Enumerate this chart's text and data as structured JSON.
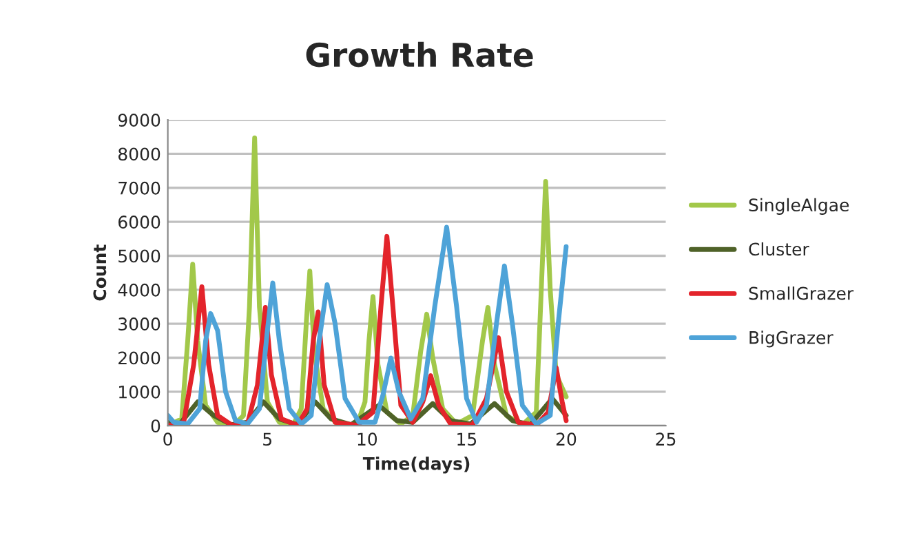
{
  "chart_data": {
    "type": "line",
    "title": "Growth Rate",
    "xlabel": "Time(days)",
    "ylabel": "Count",
    "xlim": [
      0,
      25
    ],
    "xticks": [
      0,
      5,
      10,
      15,
      20,
      25
    ],
    "ylim": [
      0,
      9000
    ],
    "yticks": [
      0,
      1000,
      2000,
      3000,
      4000,
      5000,
      6000,
      7000,
      8000,
      9000
    ],
    "grid": "y",
    "legend": "right",
    "marker": "none",
    "line_style": "solid",
    "series": [
      {
        "name": "SingleAlgae",
        "color": "#a2c84a",
        "x": [
          0,
          0.7,
          1.0,
          1.25,
          1.5,
          1.9,
          2.5,
          3.3,
          3.8,
          4.1,
          4.36,
          4.6,
          5.0,
          5.6,
          6.3,
          6.7,
          6.95,
          7.13,
          7.35,
          7.8,
          8.5,
          9.5,
          9.9,
          10.1,
          10.3,
          10.55,
          11.0,
          11.7,
          12.3,
          12.7,
          13.0,
          13.3,
          13.8,
          14.5,
          15.3,
          15.8,
          16.07,
          16.4,
          17.0,
          17.8,
          18.5,
          18.75,
          18.97,
          19.2,
          19.5,
          20.0
        ],
        "values": [
          0,
          200,
          2500,
          4750,
          2500,
          600,
          100,
          20,
          300,
          3500,
          8470,
          3500,
          700,
          100,
          30,
          500,
          3000,
          4550,
          2200,
          500,
          50,
          20,
          700,
          2500,
          3800,
          1800,
          400,
          50,
          300,
          2200,
          3280,
          2000,
          500,
          50,
          300,
          2500,
          3480,
          1800,
          300,
          30,
          400,
          4000,
          7190,
          4000,
          1500,
          850
        ]
      },
      {
        "name": "Cluster",
        "color": "#4f6228",
        "x": [
          0,
          0.6,
          1.5,
          2.3,
          3.2,
          4.0,
          4.8,
          5.6,
          6.5,
          7.4,
          8.2,
          9.2,
          10.6,
          11.5,
          12.3,
          13.3,
          14.2,
          15.2,
          16.4,
          17.3,
          18.2,
          19.3,
          20.0
        ],
        "values": [
          100,
          50,
          700,
          300,
          30,
          100,
          700,
          200,
          30,
          700,
          200,
          30,
          600,
          150,
          100,
          650,
          150,
          50,
          650,
          150,
          30,
          800,
          300
        ]
      },
      {
        "name": "SmallGrazer",
        "color": "#e3242b",
        "x": [
          0,
          0.8,
          1.3,
          1.71,
          2.05,
          2.5,
          3.2,
          4.0,
          4.5,
          4.9,
          5.2,
          5.7,
          6.5,
          7.0,
          7.3,
          7.55,
          7.85,
          8.4,
          9.5,
          10.3,
          10.7,
          11.0,
          11.3,
          11.7,
          12.3,
          12.8,
          13.2,
          13.6,
          14.2,
          15.3,
          16.0,
          16.6,
          17.0,
          17.6,
          18.5,
          19.1,
          19.5,
          19.8,
          20.0
        ],
        "values": [
          0,
          100,
          1800,
          4090,
          1800,
          300,
          20,
          50,
          1200,
          3480,
          1500,
          200,
          10,
          500,
          2500,
          3350,
          1200,
          100,
          10,
          400,
          3500,
          5570,
          3500,
          600,
          100,
          700,
          1470,
          600,
          50,
          20,
          800,
          2590,
          1000,
          100,
          10,
          400,
          1710,
          700,
          150
        ]
      },
      {
        "name": "BigGrazer",
        "color": "#4ea3d8",
        "x": [
          0,
          0.3,
          1.0,
          1.6,
          1.9,
          2.15,
          2.5,
          2.9,
          3.4,
          4.0,
          4.6,
          5.0,
          5.27,
          5.6,
          6.1,
          6.7,
          7.2,
          7.6,
          8.0,
          8.4,
          8.9,
          9.6,
          10.4,
          10.8,
          11.2,
          11.6,
          12.2,
          12.8,
          13.4,
          14.0,
          14.5,
          15.0,
          15.5,
          16.0,
          16.5,
          16.9,
          17.3,
          17.8,
          18.5,
          19.2,
          19.6,
          20.0
        ],
        "values": [
          300,
          100,
          50,
          500,
          2500,
          3300,
          2800,
          1000,
          150,
          50,
          500,
          2800,
          4200,
          2500,
          500,
          50,
          300,
          2500,
          4150,
          3000,
          800,
          100,
          100,
          900,
          1990,
          1000,
          200,
          800,
          3500,
          5840,
          3500,
          800,
          100,
          600,
          3000,
          4700,
          3000,
          600,
          50,
          300,
          3000,
          5270
        ]
      }
    ]
  }
}
